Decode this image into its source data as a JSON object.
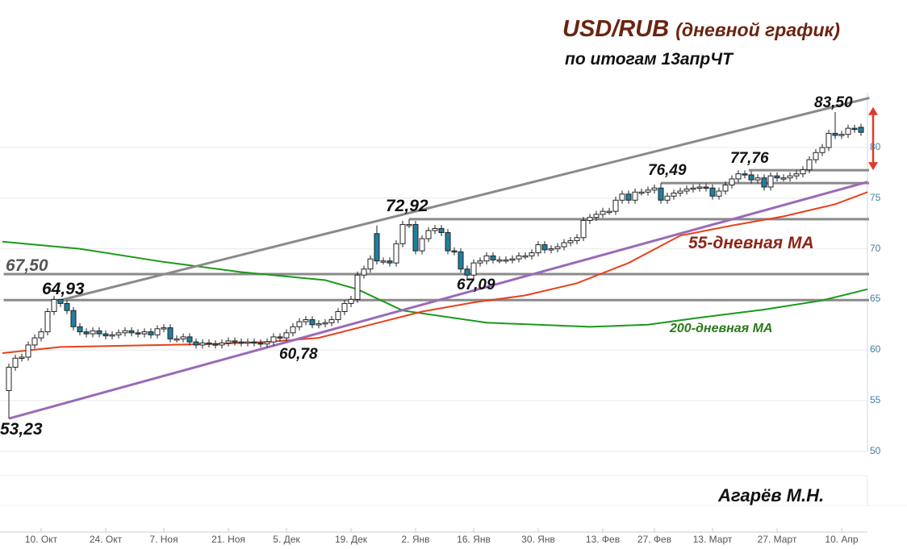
{
  "title": {
    "main": "USD/RUB",
    "sub": "(дневной график)"
  },
  "subtitle": "по итогам 13апрЧТ",
  "author": "Агарёв М.Н.",
  "colors": {
    "up_candle": "#ffffff",
    "down_candle": "#1f7fa0",
    "ma55": "#e8401c",
    "ma200": "#1a9a1a",
    "trend_upper": "#8a8a8a",
    "trend_lower": "#9a6ab8",
    "levels": "#8a8a8a",
    "arrow": "#e03a2a",
    "title": "#6b2410",
    "ma55_label": "#8b2618",
    "ma200_label": "#2a7a1a",
    "axis_text": "#3f7da3"
  },
  "chart_data": {
    "type": "candlestick",
    "title": "USD/RUB (дневной график)",
    "ylim": [
      50,
      85
    ],
    "y_ticks": [
      "50",
      "55",
      "60",
      "65",
      "70",
      "75",
      "80"
    ],
    "x_ticks": [
      "10. Окт",
      "24. Окт",
      "7. Ноя",
      "21. Ноя",
      "5. Дек",
      "19. Дек",
      "2. Янв",
      "16. Янв",
      "30. Янв",
      "13. Фев",
      "27. Фев",
      "13. Март",
      "27. Март",
      "10. Апр"
    ],
    "x_tick_candle_index": [
      6,
      16,
      25,
      35,
      44,
      54,
      64,
      73,
      83,
      93,
      101,
      110,
      120,
      130
    ],
    "grid": "horizontal",
    "candles_close": [
      58.3,
      59.2,
      59.3,
      60.5,
      61.2,
      61.8,
      63.8,
      65.0,
      64.6,
      63.9,
      62.3,
      61.8,
      61.6,
      61.9,
      61.6,
      61.4,
      61.5,
      61.7,
      61.9,
      61.7,
      61.6,
      61.8,
      61.5,
      62.1,
      62.2,
      61.1,
      61.1,
      61.3,
      60.8,
      60.5,
      60.7,
      60.6,
      60.5,
      60.7,
      60.9,
      60.8,
      60.7,
      60.8,
      60.7,
      60.6,
      60.8,
      61.3,
      61.2,
      61.7,
      62.3,
      62.8,
      63.0,
      62.5,
      62.6,
      62.7,
      63.0,
      63.8,
      64.6,
      65.0,
      67.4,
      68.0,
      69.0,
      68.8,
      68.8,
      68.6,
      70.5,
      72.4,
      72.4,
      69.8,
      71.0,
      71.8,
      72.0,
      71.6,
      69.8,
      69.7,
      68.0,
      67.4,
      68.6,
      68.8,
      69.3,
      68.9,
      68.9,
      68.9,
      69.0,
      69.3,
      69.3,
      69.6,
      70.4,
      69.9,
      70.0,
      70.2,
      70.6,
      70.8,
      71.1,
      72.8,
      73.1,
      73.4,
      73.7,
      73.7,
      74.8,
      75.4,
      74.8,
      75.6,
      75.6,
      75.8,
      76.0,
      74.8,
      75.2,
      75.5,
      75.7,
      75.9,
      76.0,
      76.1,
      76.0,
      75.2,
      75.7,
      76.3,
      76.9,
      77.4,
      77.3,
      76.8,
      77.0,
      76.1,
      77.2,
      77.0,
      77.0,
      77.2,
      77.4,
      77.8,
      78.8,
      79.5,
      80.0,
      81.4,
      81.2,
      81.3,
      81.9,
      81.8,
      81.5
    ],
    "first_open": 56.0,
    "extremes": [
      {
        "index": 0,
        "low": 53.23
      },
      {
        "index": 8,
        "high": 64.93
      },
      {
        "index": 62,
        "high": 72.92
      },
      {
        "index": 101,
        "high": 76.49
      },
      {
        "index": 113,
        "high": 77.76
      },
      {
        "index": 128,
        "high": 83.5
      },
      {
        "index": 57,
        "open": 71.5,
        "high": 72.3
      },
      {
        "index": 132,
        "open": 82.0
      }
    ],
    "ma55": {
      "name": "55-дневная МА",
      "points": [
        [
          -1,
          59.7
        ],
        [
          8,
          60.3
        ],
        [
          16,
          60.4
        ],
        [
          24,
          60.5
        ],
        [
          32,
          60.6
        ],
        [
          40,
          60.8
        ],
        [
          48,
          61.2
        ],
        [
          56,
          62.5
        ],
        [
          64,
          63.8
        ],
        [
          72,
          64.7
        ],
        [
          80,
          65.4
        ],
        [
          88,
          66.6
        ],
        [
          96,
          68.6
        ],
        [
          104,
          71.3
        ],
        [
          112,
          72.3
        ],
        [
          120,
          73.2
        ],
        [
          128,
          74.4
        ],
        [
          133,
          75.6
        ]
      ]
    },
    "ma200": {
      "name": "200-дневная МА",
      "points": [
        [
          -1,
          70.7
        ],
        [
          11,
          70.0
        ],
        [
          24,
          68.7
        ],
        [
          36,
          67.7
        ],
        [
          49,
          66.9
        ],
        [
          54,
          66.0
        ],
        [
          61,
          63.9
        ],
        [
          74,
          62.7
        ],
        [
          90,
          62.3
        ],
        [
          99,
          62.5
        ],
        [
          107,
          63.2
        ],
        [
          117,
          64.0
        ],
        [
          126,
          64.9
        ],
        [
          133,
          66.0
        ]
      ]
    },
    "trend_lines": [
      {
        "from": [
          8,
          64.93
        ],
        "to": [
          133.3,
          84.9
        ],
        "kind": "upper"
      },
      {
        "from": [
          0,
          53.23
        ],
        "to": [
          133,
          76.6
        ],
        "kind": "lower"
      }
    ],
    "levels": [
      {
        "value": 67.5,
        "from": -0.8
      },
      {
        "value": 64.93,
        "from": -0.8
      },
      {
        "value": 72.92,
        "from": 62
      },
      {
        "value": 76.49,
        "from": 101
      },
      {
        "value": 77.76,
        "from": 114.6
      }
    ],
    "range_arrow": [
      77.76,
      84.0
    ],
    "annotations": [
      "67,50",
      "64,93",
      "53,23",
      "60,78",
      "72,92",
      "67,09",
      "76,49",
      "77,76",
      "83,50"
    ]
  }
}
